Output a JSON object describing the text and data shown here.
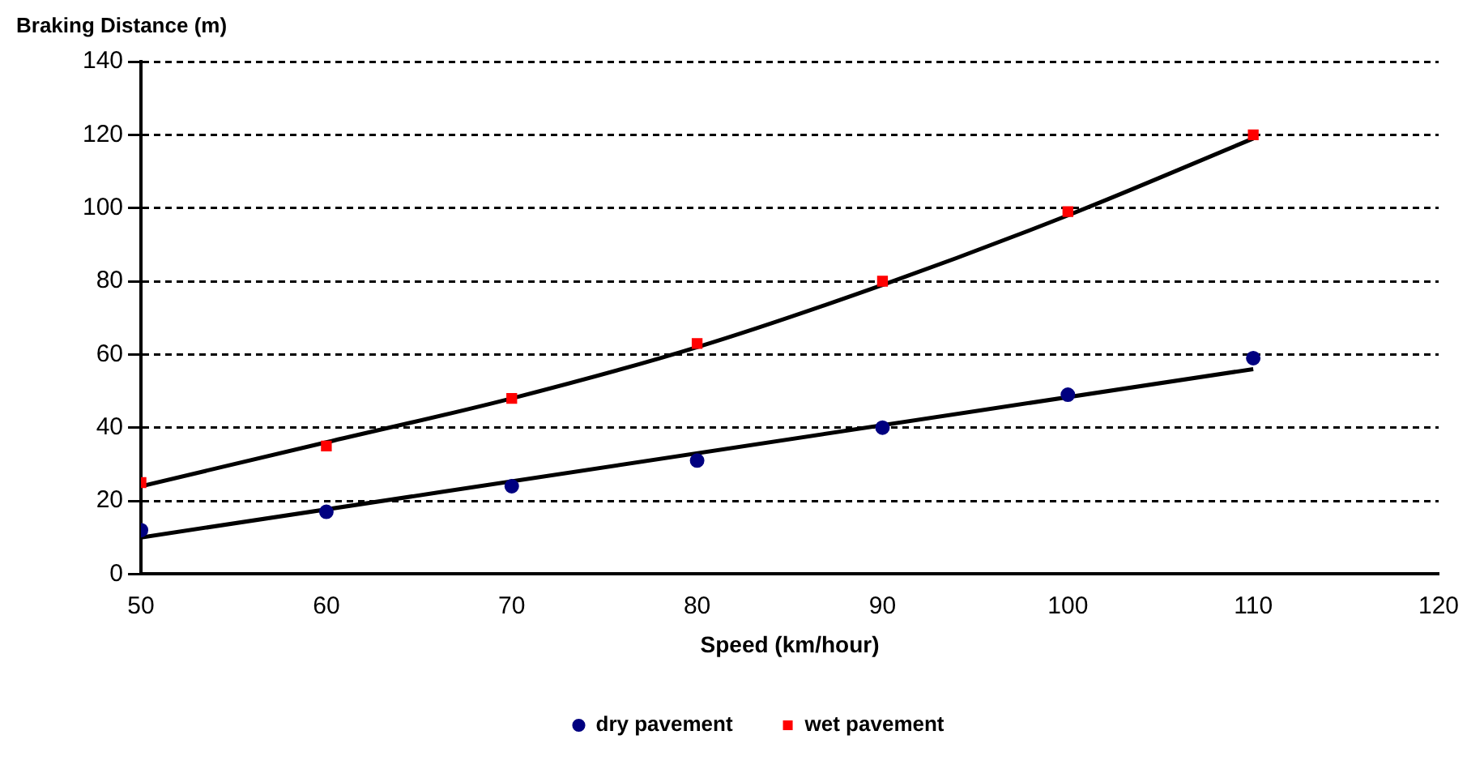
{
  "chart_data": {
    "type": "scatter",
    "ylabel": "Braking Distance (m)",
    "xlabel": "Speed (km/hour)",
    "x": [
      50,
      60,
      70,
      80,
      90,
      100,
      110
    ],
    "series": [
      {
        "name": "dry pavement",
        "color": "#000080",
        "marker": "circle",
        "values": [
          12,
          17,
          24,
          31,
          40,
          49,
          59
        ]
      },
      {
        "name": "wet pavement",
        "color": "#ff0000",
        "marker": "square",
        "values": [
          25,
          35,
          48,
          63,
          80,
          99,
          120
        ]
      },
      {
        "type": "line",
        "color": "#000000",
        "marker": "none",
        "x": [
          50,
          110
        ],
        "values": [
          10,
          56
        ]
      },
      {
        "type": "line",
        "color": "#000000",
        "marker": "none",
        "x": [
          50,
          60,
          70,
          80,
          90,
          100,
          110
        ],
        "values": [
          24,
          36,
          48,
          62,
          79,
          98,
          119
        ]
      }
    ],
    "xlim": [
      50,
      120
    ],
    "xticks": [
      50,
      60,
      70,
      80,
      90,
      100,
      110,
      120
    ],
    "ylim": [
      0,
      140
    ],
    "yticks": [
      0,
      20,
      40,
      60,
      80,
      100,
      120,
      140
    ],
    "grid": "y",
    "legend": "bottom"
  }
}
